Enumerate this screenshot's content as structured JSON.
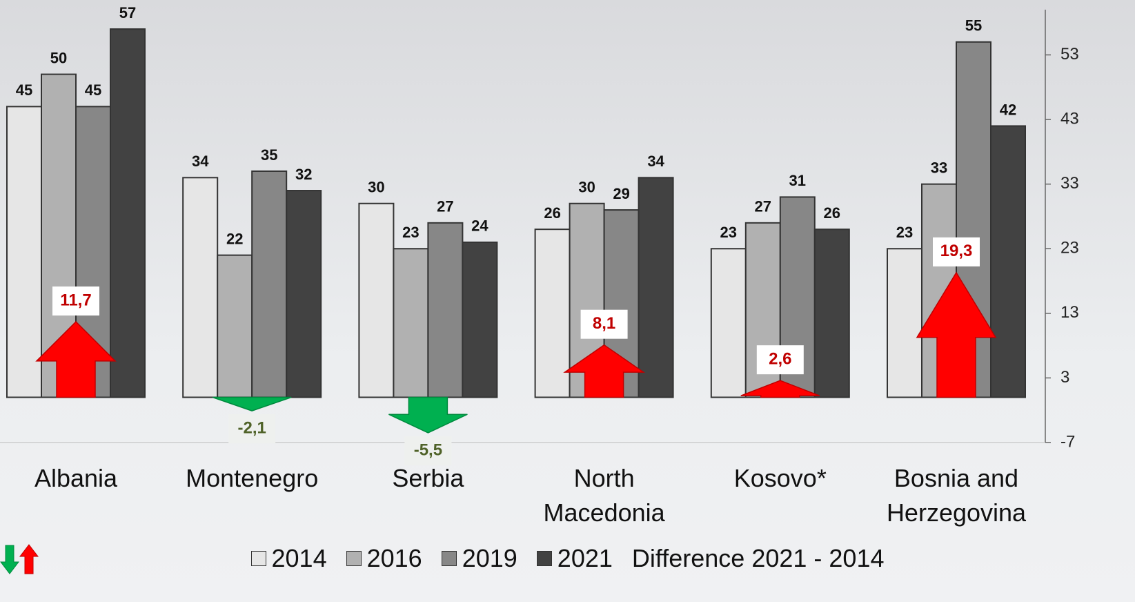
{
  "chart_data": {
    "type": "bar",
    "categories": [
      "Albania",
      "Montenegro",
      "Serbia",
      "North Macedonia",
      "Kosovo*",
      "Bosnia and Herzegovina"
    ],
    "series": [
      {
        "name": "2014",
        "color": "#e6e6e6",
        "values": [
          45,
          34,
          30,
          26,
          23,
          23
        ]
      },
      {
        "name": "2016",
        "color": "#b1b1b1",
        "values": [
          50,
          22,
          23,
          30,
          27,
          33
        ]
      },
      {
        "name": "2019",
        "color": "#878787",
        "values": [
          45,
          35,
          27,
          29,
          31,
          55
        ]
      },
      {
        "name": "2021",
        "color": "#424242",
        "values": [
          57,
          32,
          24,
          34,
          26,
          42
        ]
      }
    ],
    "difference": {
      "name": "Difference 2021 - 2014",
      "up_color": "#ff0000",
      "down_color": "#00b050",
      "values": [
        11.7,
        -2.1,
        -5.5,
        8.1,
        2.6,
        19.3
      ],
      "value_labels": [
        "11,7",
        "-2,1",
        "-5,5",
        "8,1",
        "2,6",
        "19,3"
      ]
    },
    "ylim": [
      -7,
      60
    ],
    "yticks": [
      -7,
      3,
      13,
      23,
      33,
      43,
      53
    ]
  }
}
